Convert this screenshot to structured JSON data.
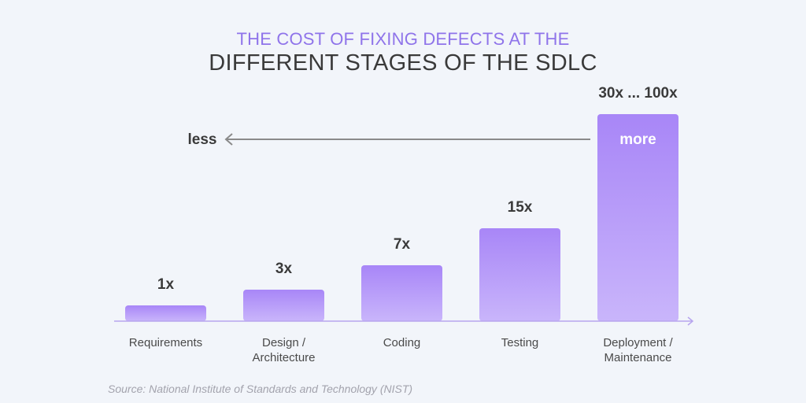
{
  "header": {
    "title_line1": "THE COST OF FIXING DEFECTS AT THE",
    "title_line2": "DIFFERENT STAGES OF THE SDLC"
  },
  "arrow": {
    "less_label": "less",
    "more_label": "more"
  },
  "source": "Source: National Institute of Standards and Technology (NIST)",
  "colors": {
    "title_accent": "#8f74ea",
    "bar_top": "#a886f7",
    "bar_bottom": "#c9b5fb",
    "axis": "#b7a5ee",
    "text_dark": "#3a3a3a",
    "label_text": "#4a4a4a"
  },
  "chart_data": {
    "type": "bar",
    "title": "THE COST OF FIXING DEFECTS AT THE DIFFERENT STAGES OF THE SDLC",
    "categories": [
      [
        "Requirements"
      ],
      [
        "Design /",
        "Architecture"
      ],
      [
        "Coding"
      ],
      [
        "Testing"
      ],
      [
        "Deployment /",
        "Maintenance"
      ]
    ],
    "values": [
      1,
      3,
      7,
      15,
      30
    ],
    "data_labels": [
      "1x",
      "3x",
      "7x",
      "15x",
      "30x ... 100x"
    ],
    "xlabel": "",
    "ylabel": "",
    "grid": false,
    "legend": "none"
  }
}
